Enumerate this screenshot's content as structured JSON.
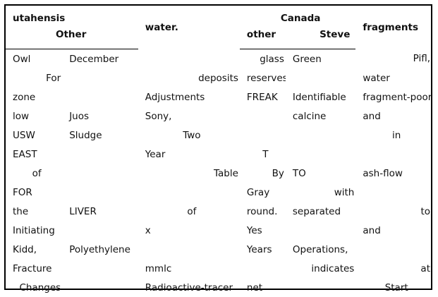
{
  "headers": {
    "top_left": "utahensis",
    "other_left": "Other",
    "water": "water.",
    "canada": "Canada",
    "other_mid": "other",
    "steve": "Steve",
    "fragments": "fragments"
  },
  "rows": [
    [
      {
        "t": "Owl",
        "a": "l"
      },
      {
        "t": "December",
        "a": "l"
      },
      {
        "t": "",
        "a": "l"
      },
      {
        "t": "glass",
        "a": "r"
      },
      {
        "t": "Green",
        "a": "l"
      },
      {
        "t": "Pifl,",
        "a": "r"
      }
    ],
    [
      {
        "t": "For",
        "a": "r"
      },
      {
        "t": "",
        "a": "l"
      },
      {
        "t": "deposits",
        "a": "r"
      },
      {
        "t": "reserves",
        "a": "l"
      },
      {
        "t": "",
        "a": "l"
      },
      {
        "t": "water",
        "a": "l"
      }
    ],
    [
      {
        "t": "zone",
        "a": "l"
      },
      {
        "t": "",
        "a": "l"
      },
      {
        "t": "Adjustments",
        "a": "l"
      },
      {
        "t": "FREAK",
        "a": "l"
      },
      {
        "t": "Identifiable",
        "a": "l"
      },
      {
        "t": "fragment-poor",
        "a": "l"
      }
    ],
    [
      {
        "t": "low",
        "a": "l"
      },
      {
        "t": "Juos",
        "a": "l"
      },
      {
        "t": "Sony,",
        "a": "l"
      },
      {
        "t": "",
        "a": "l"
      },
      {
        "t": "calcine",
        "a": "l"
      },
      {
        "t": "and",
        "a": "l"
      }
    ],
    [
      {
        "t": "USW",
        "a": "l"
      },
      {
        "t": "Sludge",
        "a": "l"
      },
      {
        "t": "Two",
        "a": "c"
      },
      {
        "t": "",
        "a": "l"
      },
      {
        "t": "",
        "a": "l"
      },
      {
        "t": "in",
        "a": "c"
      }
    ],
    [
      {
        "t": "EAST",
        "a": "l"
      },
      {
        "t": "",
        "a": "l"
      },
      {
        "t": "Year",
        "a": "l"
      },
      {
        "t": "T",
        "a": "c"
      },
      {
        "t": "",
        "a": "l"
      },
      {
        "t": "",
        "a": "l"
      }
    ],
    [
      {
        "t": "of",
        "a": "c"
      },
      {
        "t": "",
        "a": "l"
      },
      {
        "t": "Table",
        "a": "r"
      },
      {
        "t": "By",
        "a": "r"
      },
      {
        "t": "TO",
        "a": "l"
      },
      {
        "t": "ash-flow",
        "a": "l"
      }
    ],
    [
      {
        "t": "FOR",
        "a": "l"
      },
      {
        "t": "",
        "a": "l"
      },
      {
        "t": "",
        "a": "l"
      },
      {
        "t": "Gray",
        "a": "l"
      },
      {
        "t": "with",
        "a": "r"
      },
      {
        "t": "",
        "a": "l"
      }
    ],
    [
      {
        "t": "the",
        "a": "l"
      },
      {
        "t": "LIVER",
        "a": "l"
      },
      {
        "t": "of",
        "a": "c"
      },
      {
        "t": "round.",
        "a": "l"
      },
      {
        "t": "separated",
        "a": "l"
      },
      {
        "t": "to",
        "a": "r"
      }
    ],
    [
      {
        "t": "Initiating",
        "a": "l"
      },
      {
        "t": "",
        "a": "l"
      },
      {
        "t": "x",
        "a": "l"
      },
      {
        "t": "Yes",
        "a": "l"
      },
      {
        "t": "",
        "a": "l"
      },
      {
        "t": "and",
        "a": "l"
      }
    ],
    [
      {
        "t": "Kidd,",
        "a": "l"
      },
      {
        "t": "Polyethylene",
        "a": "l"
      },
      {
        "t": "",
        "a": "l"
      },
      {
        "t": "Years",
        "a": "l"
      },
      {
        "t": "Operations,",
        "a": "l"
      },
      {
        "t": "",
        "a": "l"
      }
    ],
    [
      {
        "t": "Fracture",
        "a": "l"
      },
      {
        "t": "",
        "a": "l"
      },
      {
        "t": "mmlc",
        "a": "l"
      },
      {
        "t": "",
        "a": "l"
      },
      {
        "t": "indicates",
        "a": "r"
      },
      {
        "t": "at",
        "a": "r"
      }
    ],
    [
      {
        "t": "Changes",
        "a": "r"
      },
      {
        "t": "",
        "a": "l"
      },
      {
        "t": "Radioactive-tracer",
        "a": "l"
      },
      {
        "t": "net",
        "a": "l"
      },
      {
        "t": "",
        "a": "l"
      },
      {
        "t": "Start",
        "a": "c"
      }
    ]
  ]
}
